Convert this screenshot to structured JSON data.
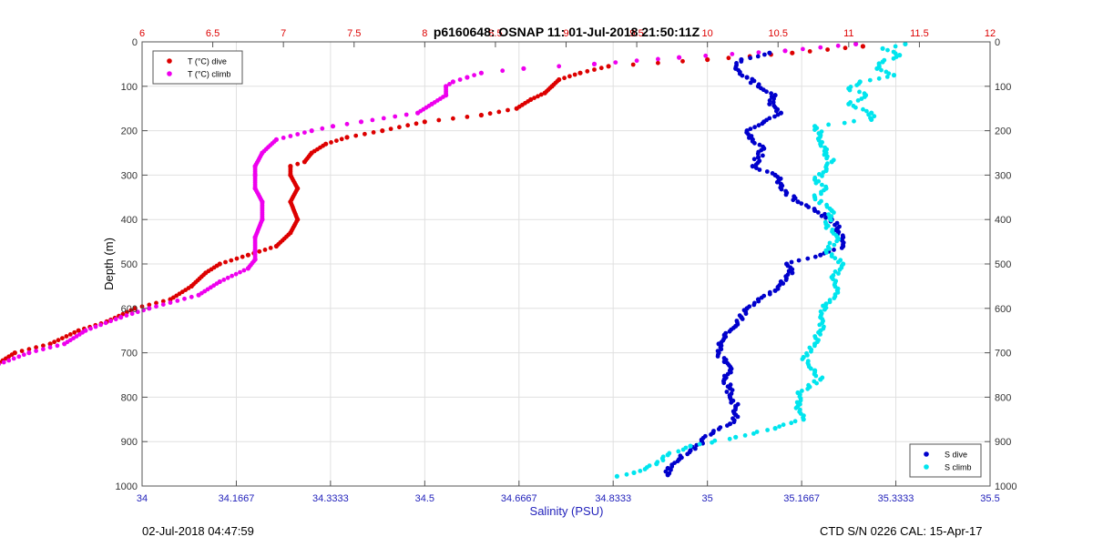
{
  "title": "p6160648: OSNAP 11: 01-Jul-2018 21:50:11Z",
  "footer_left": "02-Jul-2018 04:47:59",
  "footer_right": "CTD S/N 0226  CAL: 15-Apr-17",
  "colors": {
    "t_dive": "#dd0000",
    "t_climb": "#ee00ee",
    "s_dive": "#0000cc",
    "s_climb": "#00e5ee",
    "bottom_axis": "#2222bb",
    "top_axis": "#dd0000",
    "grid": "#e0e0e0"
  },
  "chart_data": {
    "type": "scatter",
    "ylabel": "Depth (m)",
    "xlabel_bottom": "Salinity (PSU)",
    "xlabel_top": "",
    "y_reversed": true,
    "ylim": [
      0,
      1000
    ],
    "yticks": [
      0,
      100,
      200,
      300,
      400,
      500,
      600,
      700,
      800,
      900,
      1000
    ],
    "ytick_labels": [
      "0",
      "100",
      "200",
      "300",
      "400",
      "500",
      "600",
      "700",
      "800",
      "900",
      "1000"
    ],
    "xlim_bottom": [
      34,
      35.5
    ],
    "xticks_bottom": [
      34,
      34.1667,
      34.3333,
      34.5,
      34.6667,
      34.8333,
      35,
      35.1667,
      35.3333,
      35.5
    ],
    "xtick_labels_bottom": [
      "34",
      "34.1667",
      "34.3333",
      "34.5",
      "34.6667",
      "34.8333",
      "35",
      "35.1667",
      "35.3333",
      "35.5"
    ],
    "xlim_top": [
      6,
      12
    ],
    "xticks_top": [
      6,
      6.5,
      7,
      7.5,
      8,
      8.5,
      9,
      9.5,
      10,
      10.5,
      11,
      11.5,
      12
    ],
    "xtick_labels_top": [
      "6",
      "6.5",
      "7",
      "7.5",
      "8",
      "8.5",
      "9",
      "9.5",
      "10",
      "10.5",
      "11",
      "11.5",
      "12"
    ],
    "grid": true,
    "legends": [
      {
        "placement": "top-left",
        "entries": [
          {
            "label": "T (°C) dive",
            "series": "t_dive"
          },
          {
            "label": "T (°C) climb",
            "series": "t_climb"
          }
        ]
      },
      {
        "placement": "bottom-right",
        "entries": [
          {
            "label": "S dive",
            "series": "s_dive"
          },
          {
            "label": "S climb",
            "series": "s_climb"
          }
        ]
      }
    ],
    "series": [
      {
        "key": "t_dive",
        "name": "T (°C) dive",
        "axis": "top",
        "depth": [
          10,
          25,
          40,
          55,
          70,
          85,
          100,
          115,
          130,
          150,
          165,
          180,
          200,
          215,
          230,
          250,
          270,
          280,
          300,
          330,
          360,
          400,
          430,
          460,
          480,
          500,
          520,
          550,
          580,
          600,
          630,
          650,
          680,
          700,
          730,
          760,
          790,
          820,
          850,
          870,
          890,
          910,
          930,
          950,
          975
        ],
        "values": [
          11.1,
          10.6,
          10.0,
          9.3,
          9.1,
          8.95,
          8.9,
          8.85,
          8.75,
          8.65,
          8.4,
          8.0,
          7.7,
          7.45,
          7.3,
          7.2,
          7.15,
          7.05,
          7.05,
          7.1,
          7.05,
          7.1,
          7.05,
          6.95,
          6.75,
          6.55,
          6.45,
          6.35,
          6.2,
          5.95,
          5.75,
          5.55,
          5.35,
          5.1,
          4.95,
          4.6,
          4.4,
          4.3,
          4.1,
          3.85,
          3.55,
          3.3,
          3.05,
          2.7,
          2.2
        ]
      },
      {
        "key": "t_climb",
        "name": "T (°C) climb",
        "axis": "top",
        "depth": [
          5,
          20,
          35,
          50,
          60,
          70,
          80,
          90,
          100,
          120,
          140,
          160,
          180,
          190,
          200,
          220,
          250,
          280,
          300,
          330,
          360,
          400,
          440,
          470,
          490,
          510,
          540,
          570,
          600,
          620,
          650,
          680,
          700,
          730,
          760,
          790,
          820,
          850,
          870,
          890,
          910,
          930,
          950,
          970
        ],
        "values": [
          11.05,
          10.55,
          9.8,
          9.2,
          8.7,
          8.4,
          8.3,
          8.2,
          8.15,
          8.15,
          8.05,
          7.95,
          7.55,
          7.35,
          7.2,
          6.95,
          6.85,
          6.8,
          6.8,
          6.8,
          6.85,
          6.85,
          6.8,
          6.8,
          6.8,
          6.75,
          6.55,
          6.4,
          6.05,
          5.85,
          5.6,
          5.45,
          5.2,
          4.95,
          4.6,
          4.45,
          4.3,
          4.2,
          3.95,
          3.65,
          3.4,
          3.1,
          2.8,
          2.35
        ]
      },
      {
        "key": "s_dive",
        "name": "S dive",
        "axis": "bottom",
        "depth": [
          25,
          40,
          60,
          80,
          100,
          120,
          140,
          160,
          180,
          200,
          220,
          240,
          260,
          280,
          300,
          320,
          340,
          360,
          380,
          400,
          420,
          440,
          460,
          480,
          500,
          520,
          540,
          560,
          580,
          600,
          620,
          640,
          660,
          680,
          700,
          720,
          740,
          760,
          780,
          800,
          820,
          840,
          860,
          880,
          900,
          920,
          940,
          960,
          975
        ],
        "values": [
          35.11,
          35.06,
          35.05,
          35.07,
          35.09,
          35.12,
          35.11,
          35.13,
          35.1,
          35.07,
          35.08,
          35.1,
          35.09,
          35.08,
          35.12,
          35.13,
          35.14,
          35.16,
          35.19,
          35.22,
          35.23,
          35.24,
          35.24,
          35.2,
          35.14,
          35.15,
          35.13,
          35.12,
          35.09,
          35.07,
          35.06,
          35.05,
          35.03,
          35.02,
          35.02,
          35.03,
          35.04,
          35.03,
          35.04,
          35.04,
          35.05,
          35.05,
          35.04,
          35.01,
          34.99,
          34.97,
          34.95,
          34.93,
          34.93
        ]
      },
      {
        "key": "s_climb",
        "name": "S climb",
        "axis": "bottom",
        "depth": [
          5,
          15,
          30,
          45,
          60,
          75,
          90,
          105,
          120,
          140,
          160,
          175,
          190,
          210,
          230,
          250,
          270,
          290,
          310,
          330,
          350,
          380,
          410,
          440,
          470,
          500,
          530,
          560,
          590,
          620,
          650,
          680,
          710,
          740,
          760,
          790,
          820,
          850,
          870,
          890,
          910,
          930,
          950,
          970,
          978
        ],
        "values": [
          35.35,
          35.31,
          35.34,
          35.31,
          35.3,
          35.33,
          35.27,
          35.25,
          35.28,
          35.25,
          35.29,
          35.29,
          35.19,
          35.2,
          35.2,
          35.21,
          35.22,
          35.21,
          35.19,
          35.21,
          35.19,
          35.22,
          35.21,
          35.23,
          35.21,
          35.24,
          35.22,
          35.23,
          35.21,
          35.2,
          35.2,
          35.19,
          35.17,
          35.19,
          35.2,
          35.16,
          35.16,
          35.17,
          35.12,
          35.05,
          34.97,
          34.93,
          34.91,
          34.87,
          34.84
        ]
      }
    ]
  }
}
